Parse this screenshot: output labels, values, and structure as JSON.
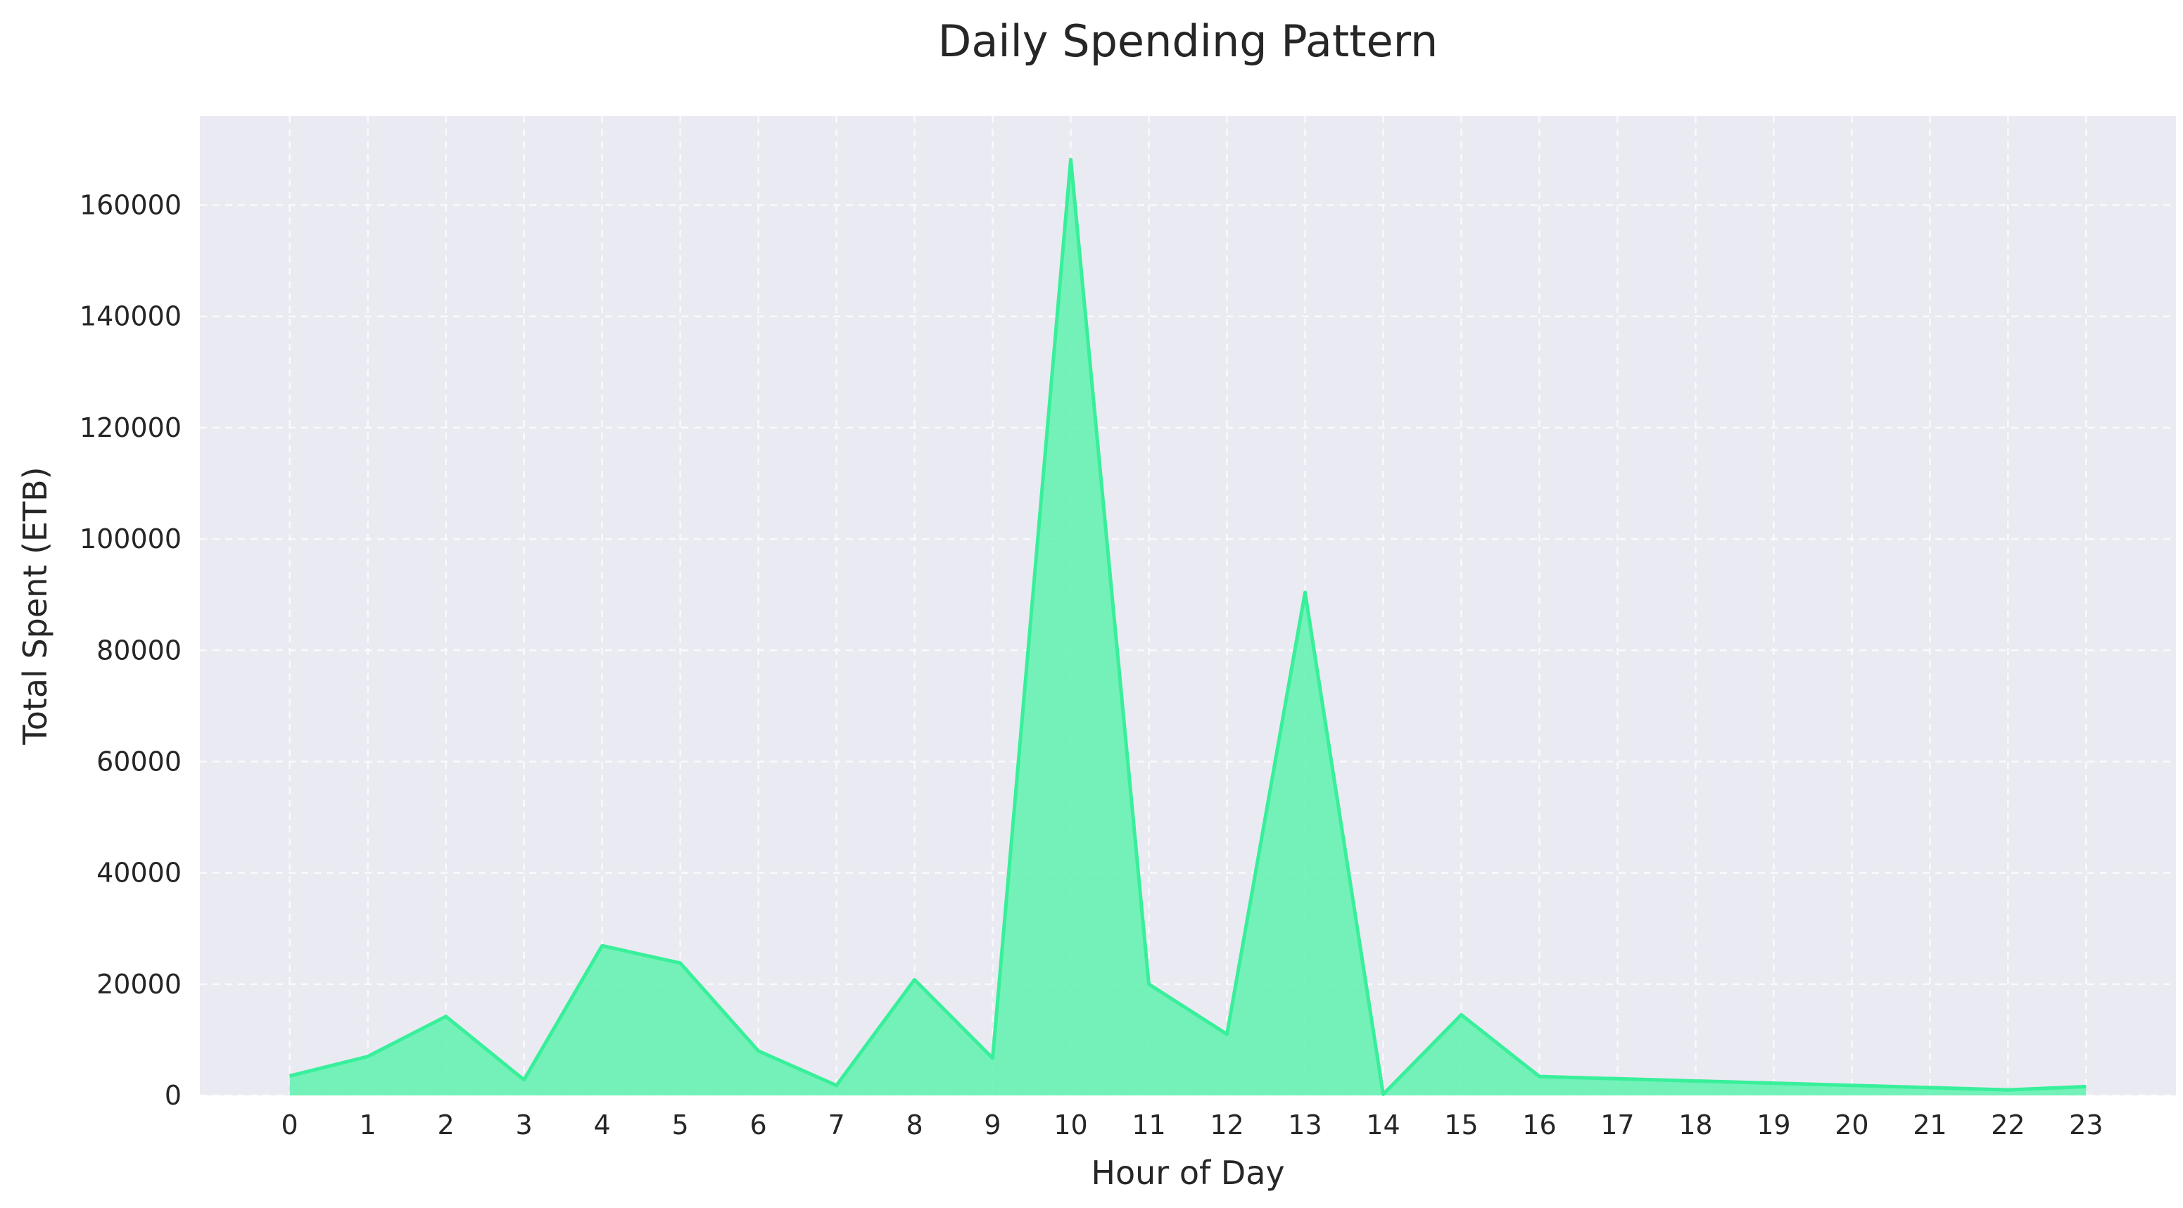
{
  "chart_data": {
    "type": "area",
    "title": "Daily Spending Pattern",
    "xlabel": "Hour of Day",
    "ylabel": "Total Spent (ETB)",
    "x": [
      0,
      1,
      2,
      3,
      4,
      5,
      6,
      7,
      8,
      9,
      10,
      11,
      12,
      13,
      14,
      15,
      16,
      22,
      23
    ],
    "values": [
      3500,
      7000,
      14200,
      2800,
      26900,
      23800,
      8000,
      1800,
      20800,
      6700,
      168200,
      20000,
      11000,
      90400,
      200,
      14500,
      3400,
      1000,
      1600
    ],
    "xticks": [
      "0",
      "1",
      "2",
      "3",
      "4",
      "5",
      "6",
      "7",
      "8",
      "9",
      "10",
      "11",
      "12",
      "13",
      "14",
      "15",
      "16",
      "17",
      "18",
      "19",
      "20",
      "21",
      "22",
      "23"
    ],
    "yticks": [
      "0",
      "20000",
      "40000",
      "60000",
      "80000",
      "100000",
      "120000",
      "140000",
      "160000"
    ],
    "xlim": [
      -1.15,
      24.15
    ],
    "ylim": [
      0,
      176000
    ],
    "grid": true,
    "colors": {
      "fill": "#5ef2af",
      "line": "#38ef9a",
      "background": "#eaeaf2",
      "grid": "#ffffff"
    }
  }
}
